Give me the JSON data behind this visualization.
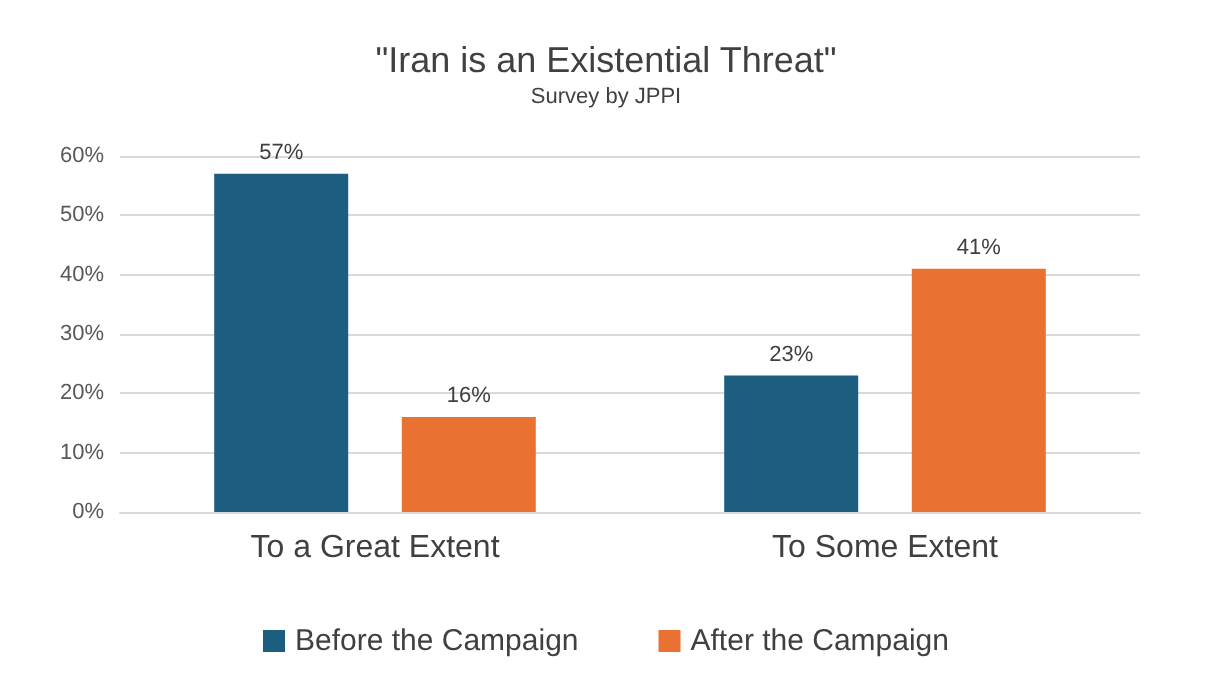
{
  "chart_data": {
    "type": "bar",
    "title": "\"Iran is an Existential Threat\"",
    "subtitle": "Survey by JPPI",
    "categories": [
      "To a Great Extent",
      "To Some Extent"
    ],
    "series": [
      {
        "name": "Before the Campaign",
        "color": "#1d5e80",
        "values": [
          57,
          23
        ],
        "value_labels": [
          "57%",
          "23%"
        ]
      },
      {
        "name": "After the Campaign",
        "color": "#e97132",
        "values": [
          16,
          41
        ],
        "value_labels": [
          "16%",
          "41%"
        ]
      }
    ],
    "ylim": [
      0,
      60
    ],
    "yticks": [
      {
        "value": 0,
        "label": "0%"
      },
      {
        "value": 10,
        "label": "10%"
      },
      {
        "value": 20,
        "label": "20%"
      },
      {
        "value": 30,
        "label": "30%"
      },
      {
        "value": 40,
        "label": "40%"
      },
      {
        "value": 50,
        "label": "50%"
      },
      {
        "value": 60,
        "label": "60%"
      }
    ],
    "grid": "y",
    "legend": "bottom"
  }
}
